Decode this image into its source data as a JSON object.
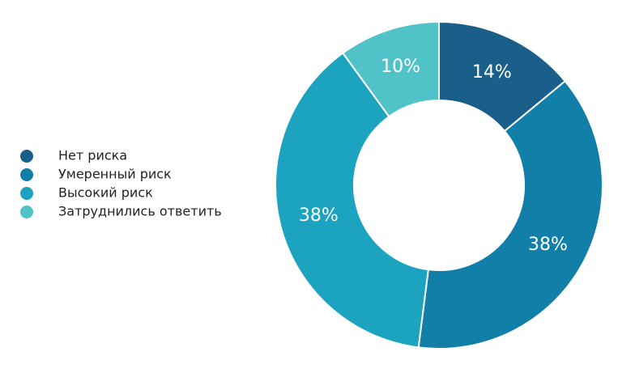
{
  "chart_data": {
    "type": "donut",
    "categories": [
      "Нет риска",
      "Умеренный риск",
      "Высокий риск",
      "Затруднились ответить"
    ],
    "values": [
      14,
      38,
      38,
      10
    ],
    "value_labels": [
      "14%",
      "38%",
      "38%",
      "10%"
    ],
    "colors": [
      "#1a5f8a",
      "#127fa8",
      "#1ba3bf",
      "#52c2c9"
    ]
  }
}
